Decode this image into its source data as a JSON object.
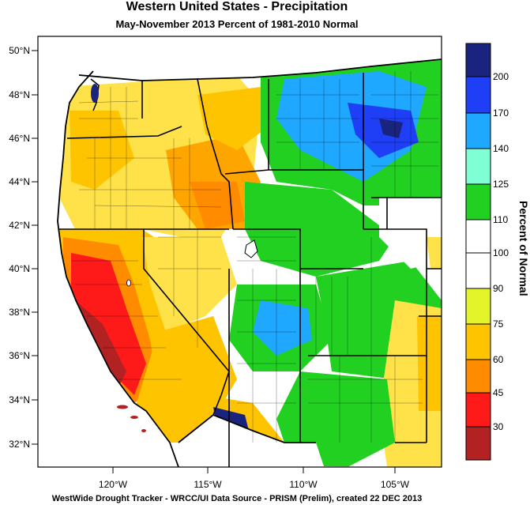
{
  "title": "Western United States - Precipitation",
  "subtitle": "May-November 2013  Percent of 1981-2010 Normal",
  "footer": "WestWide Drought Tracker - WRCC/UI  Data Source - PRISM (Prelim), created 22 DEC 2013",
  "colorbar": {
    "label": "Percent of Normal",
    "ticks": [
      "200",
      "170",
      "140",
      "125",
      "110",
      "100",
      "90",
      "75",
      "60",
      "45",
      "30"
    ],
    "colors": [
      "#1a237e",
      "#1e3ff5",
      "#1ea8ff",
      "#7fffd4",
      "#22d022",
      "#ffffff",
      "#ffffff",
      "#e3f52a",
      "#ffc400",
      "#ff8c00",
      "#ff1a1a",
      "#b22222"
    ]
  },
  "axes": {
    "lat_labels": [
      "50°N",
      "48°N",
      "46°N",
      "44°N",
      "42°N",
      "40°N",
      "38°N",
      "36°N",
      "34°N",
      "32°N"
    ],
    "lon_labels": [
      "120°W",
      "115°W",
      "110°W",
      "105°W"
    ]
  }
}
